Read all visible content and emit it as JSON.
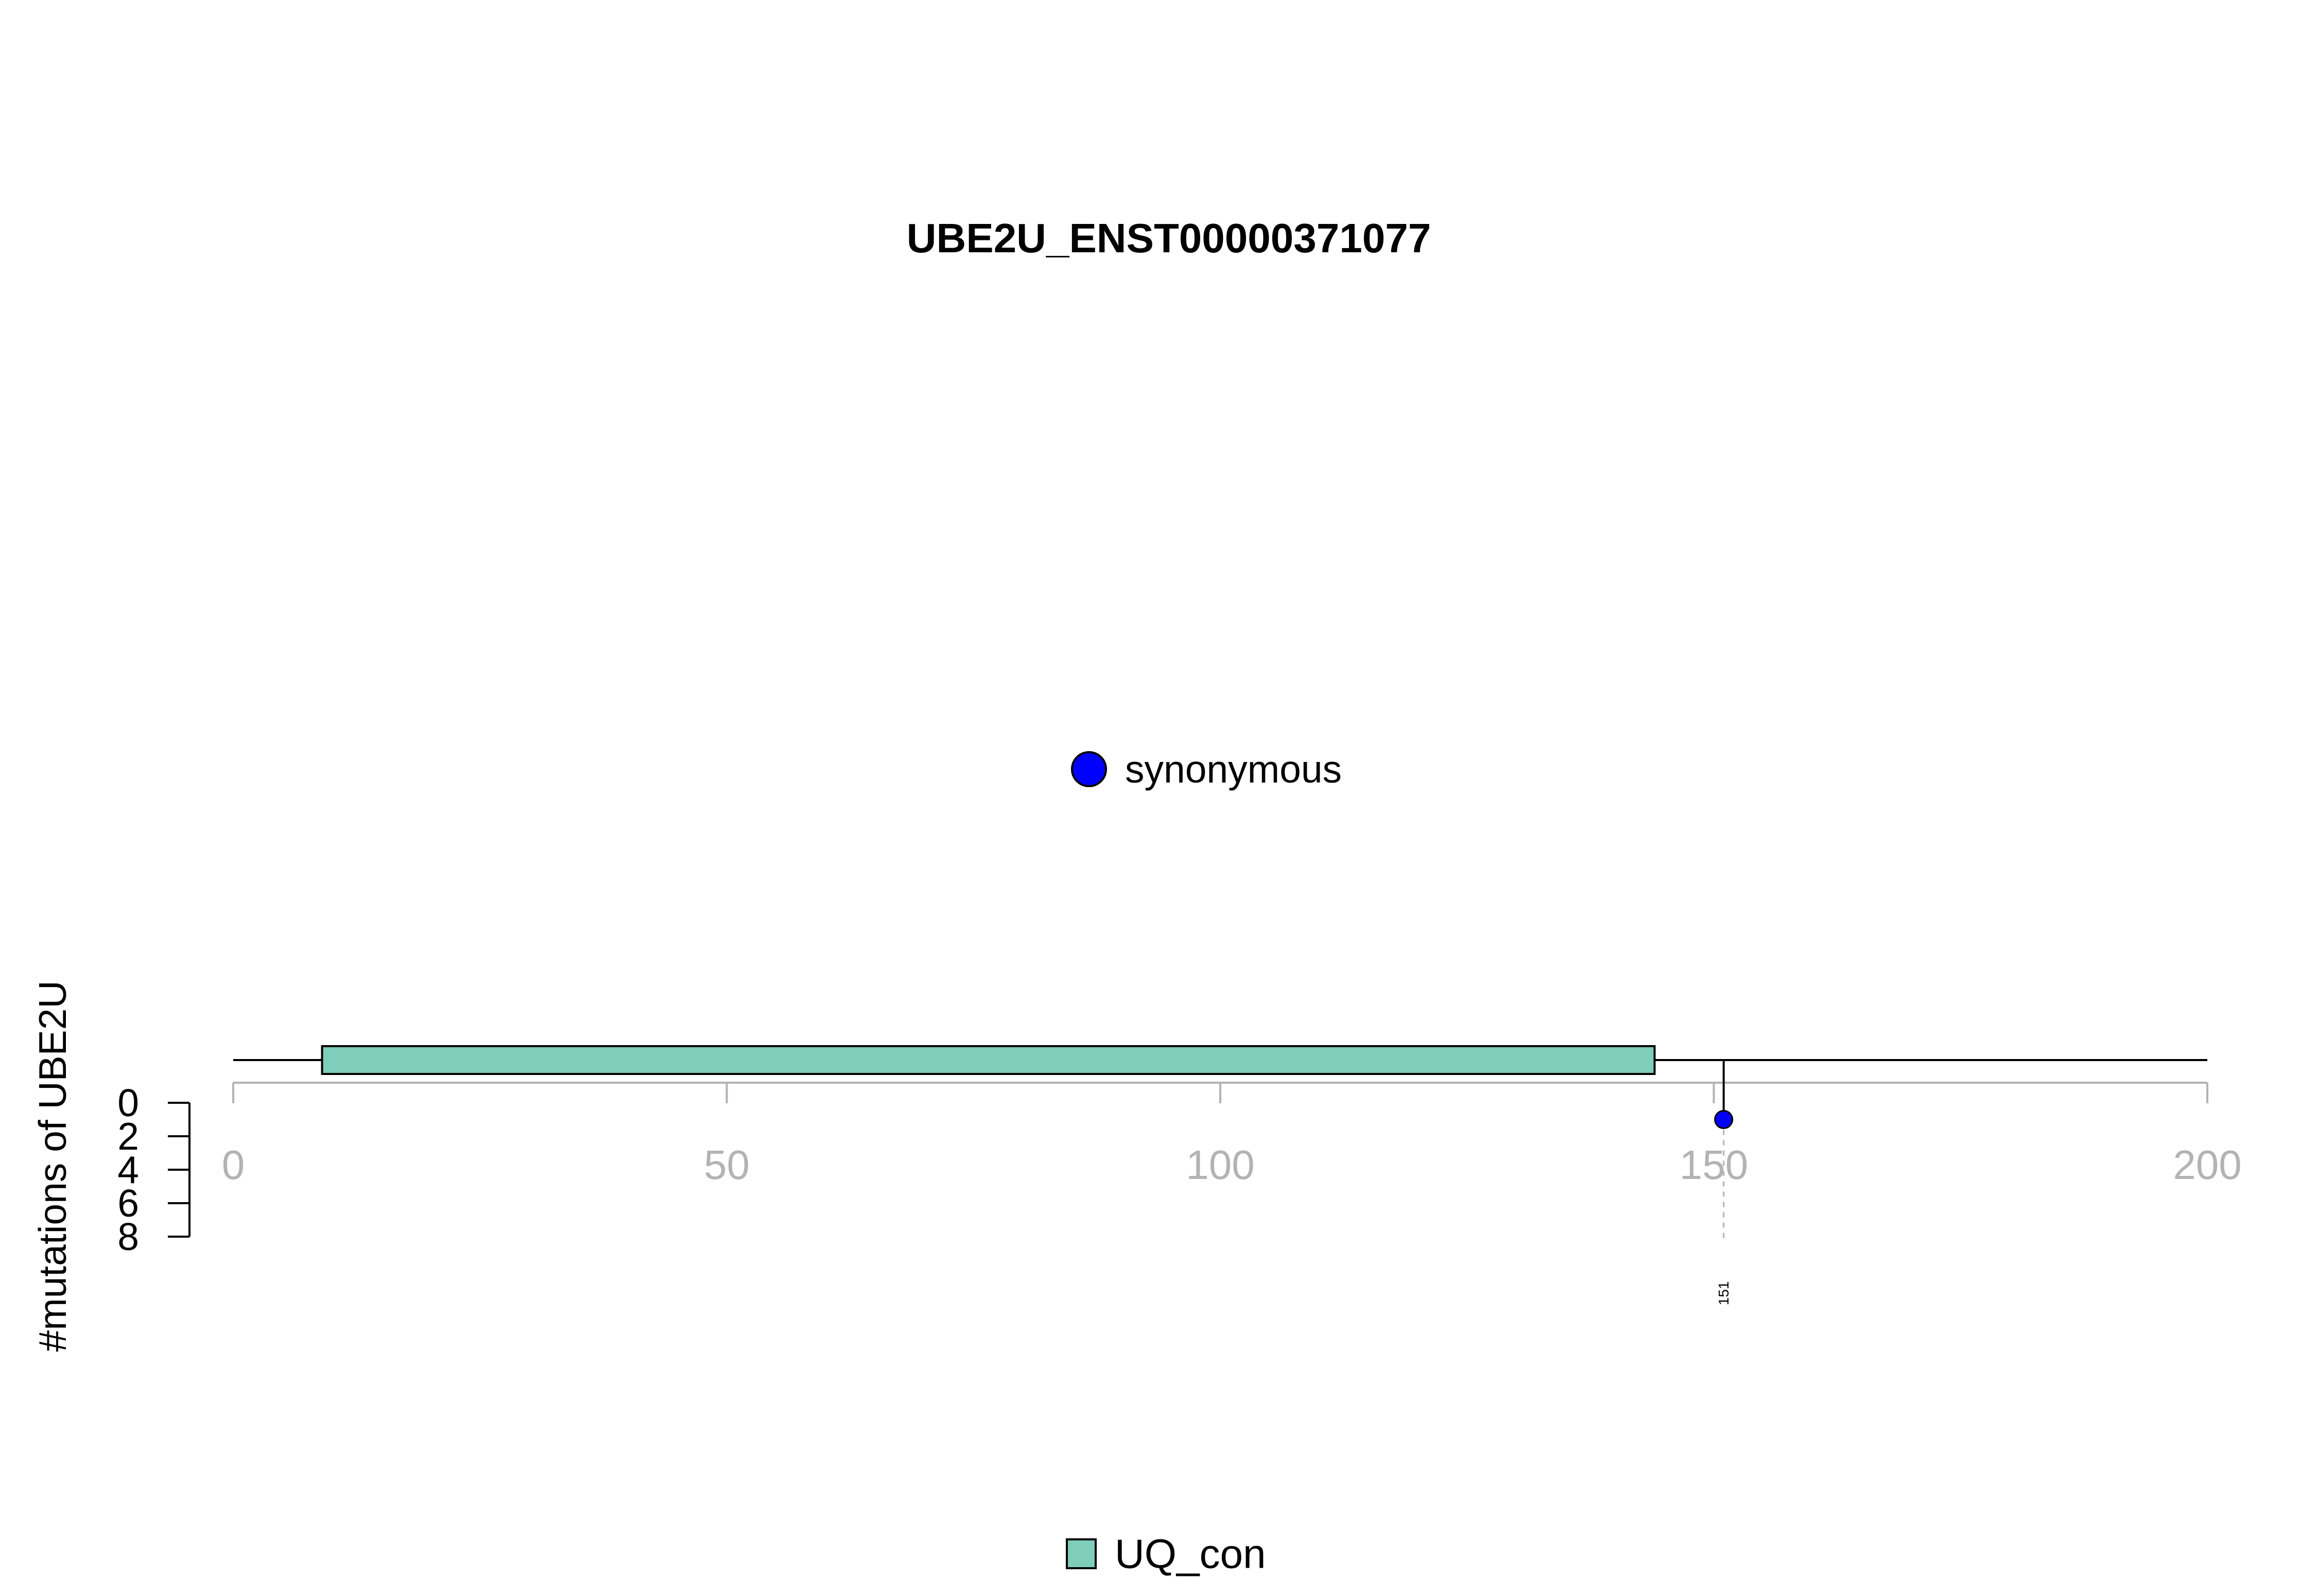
{
  "chart_data": {
    "type": "lollipop",
    "title": "UBE2U_ENST00000371077",
    "ylabel": "#mutations of UBE2U",
    "xlim": [
      0,
      200
    ],
    "xticks": [
      0,
      50,
      100,
      150,
      200
    ],
    "ylim": [
      0,
      8
    ],
    "yticks": [
      0,
      2,
      4,
      6,
      8
    ],
    "protein_length": 200,
    "domains": [
      {
        "name": "UQ_con",
        "start": 9,
        "end": 144,
        "color": "#7fcdbb"
      }
    ],
    "mutations": [
      {
        "position": 151,
        "count": 1,
        "label": "151",
        "type": "synonymous",
        "color": "#0000ff"
      }
    ],
    "legend_mutation": [
      {
        "label": "synonymous",
        "color": "#0000ff"
      }
    ],
    "legend_domain": [
      {
        "label": "UQ_con",
        "color": "#7fcdbb"
      }
    ]
  }
}
